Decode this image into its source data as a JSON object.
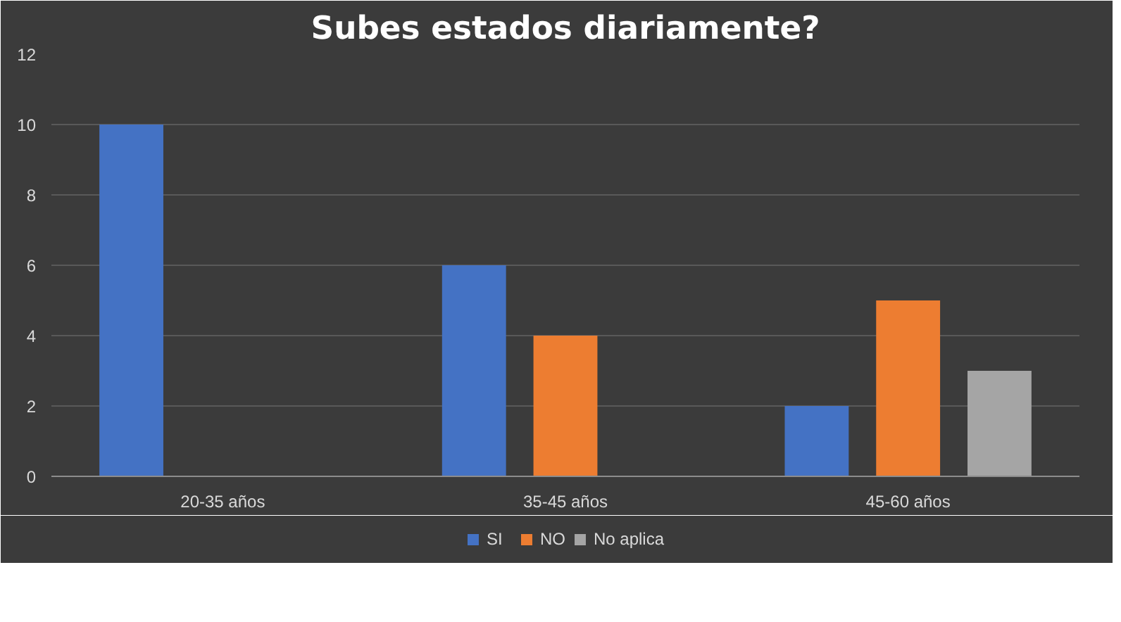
{
  "chart_data": {
    "type": "bar",
    "title": "Subes estados diariamente?",
    "categories": [
      "20-35 años",
      "35-45 años",
      "45-60 años"
    ],
    "series": [
      {
        "name": "SI",
        "color": "#4472c4",
        "values": [
          10,
          6,
          2
        ]
      },
      {
        "name": "NO",
        "color": "#ed7d31",
        "values": [
          0,
          4,
          5
        ]
      },
      {
        "name": "No aplica",
        "color": "#a5a5a5",
        "values": [
          0,
          0,
          3
        ]
      }
    ],
    "ylim": [
      0,
      12
    ],
    "yticks": [
      0,
      2,
      4,
      6,
      8,
      10,
      12
    ],
    "grid": "y",
    "legend": "bottom"
  }
}
